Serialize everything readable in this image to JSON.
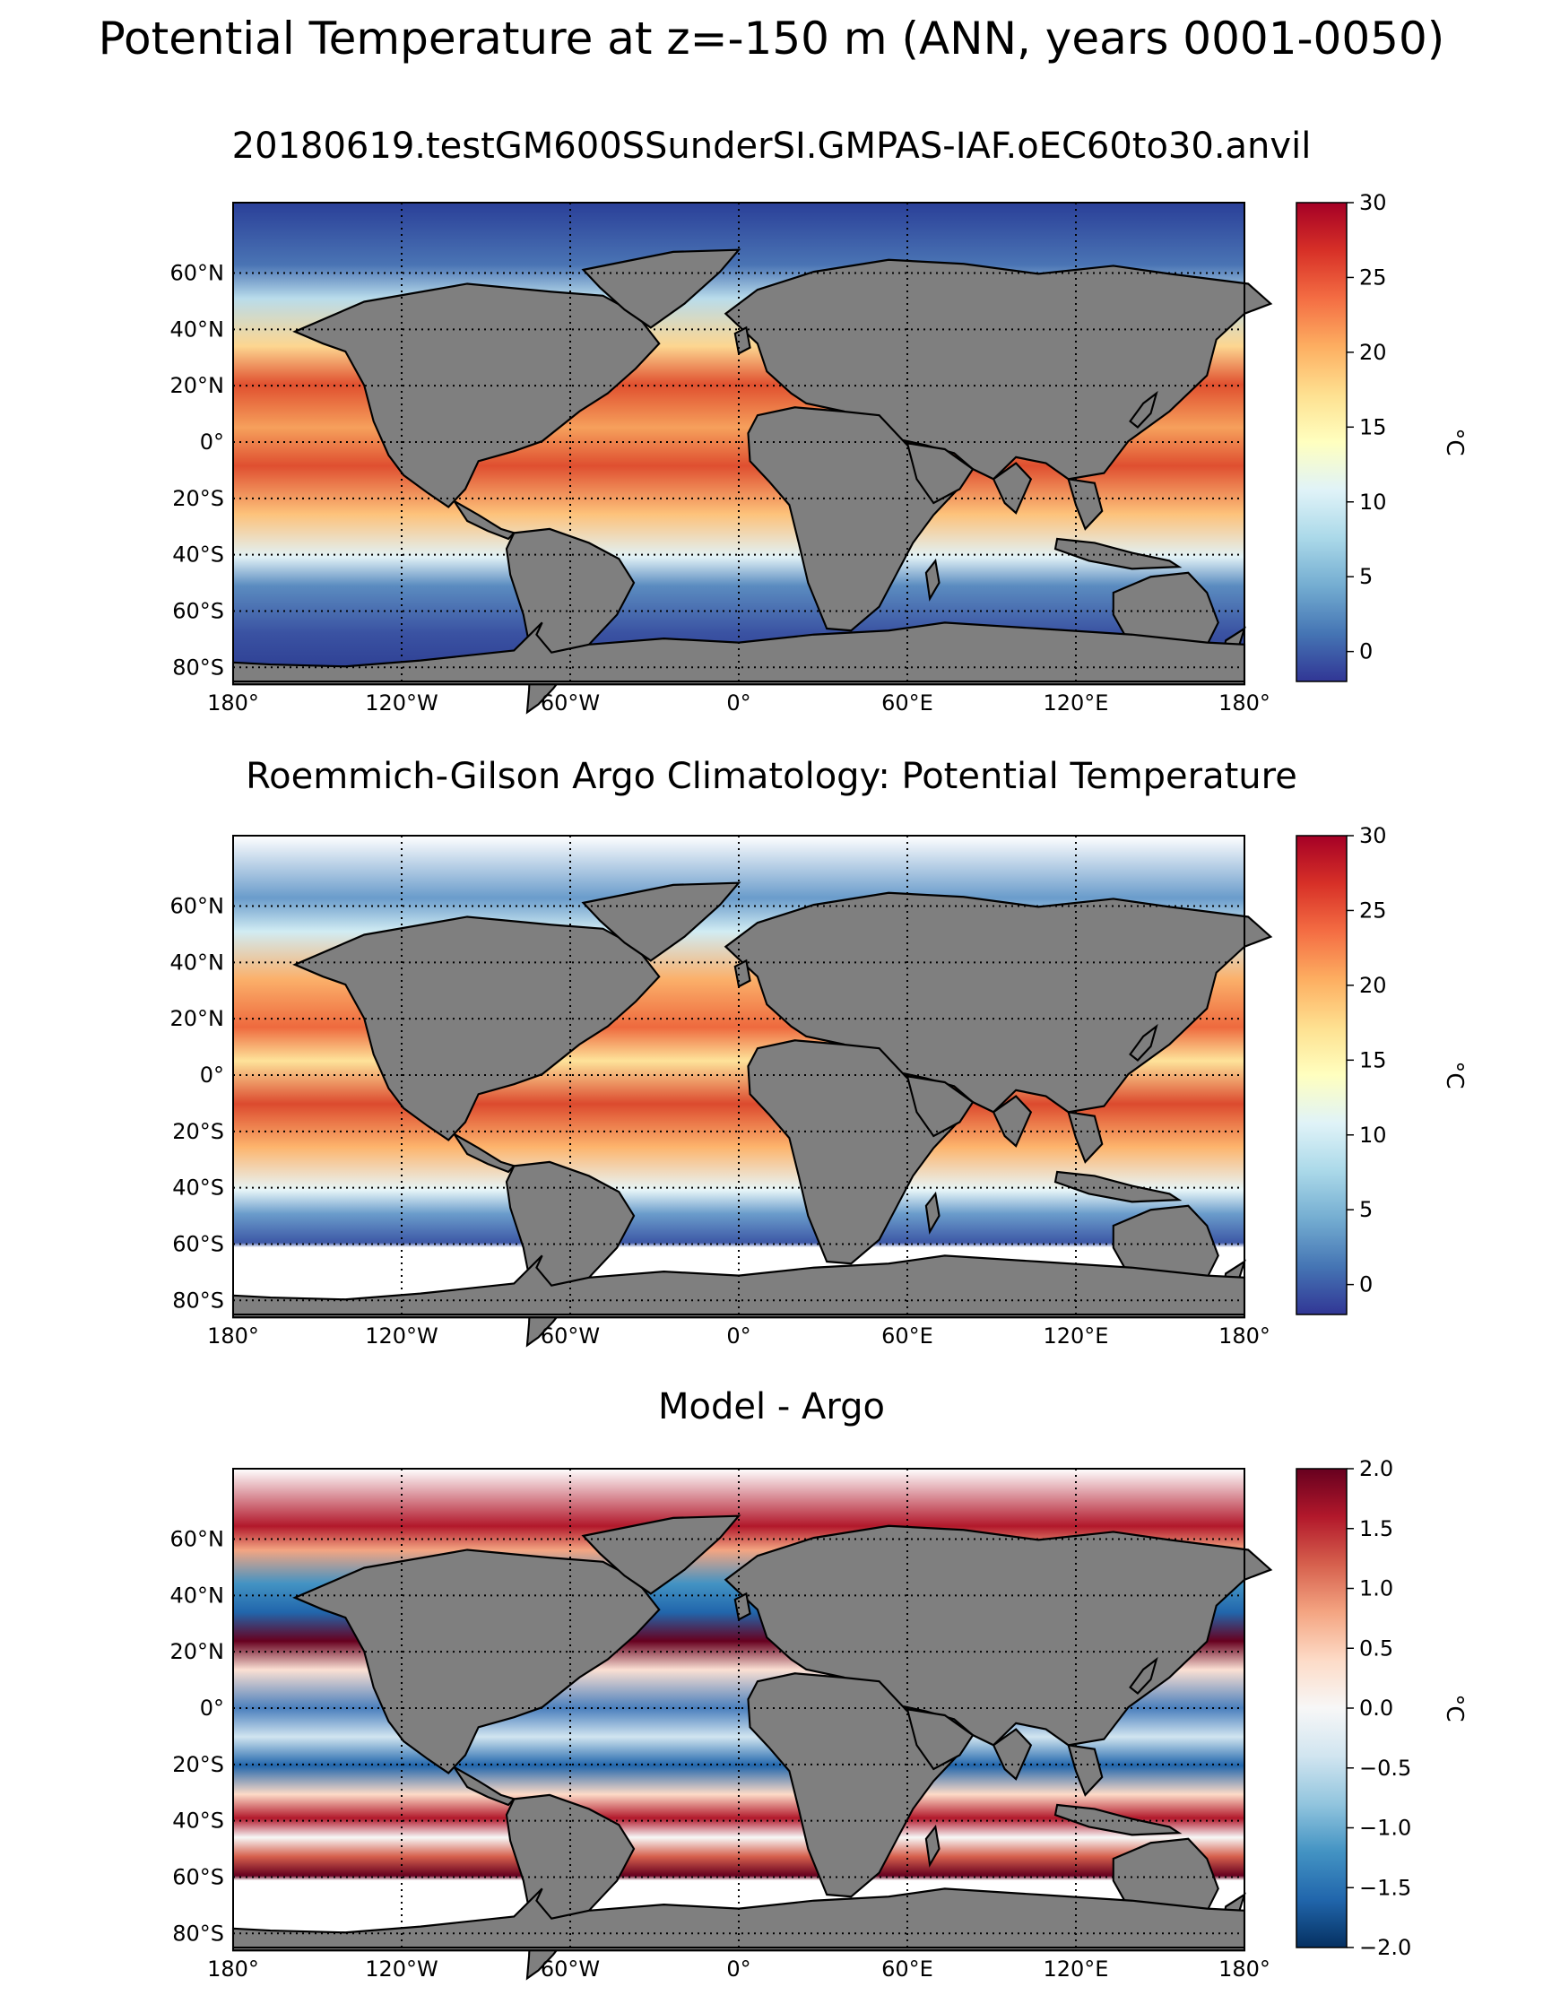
{
  "figure": {
    "title": "Potential Temperature at z=-150 m (ANN, years 0001-0050)"
  },
  "axes": {
    "lon_labels": [
      "180°",
      "120°W",
      "60°W",
      "0°",
      "60°E",
      "120°E",
      "180°"
    ],
    "lon_values": [
      -180,
      -120,
      -60,
      0,
      60,
      120,
      180
    ],
    "lat_labels": [
      "60°N",
      "40°N",
      "20°N",
      "0°",
      "20°S",
      "40°S",
      "60°S",
      "80°S"
    ],
    "lat_values": [
      60,
      40,
      20,
      0,
      -20,
      -40,
      -60,
      -80
    ],
    "lat_range": [
      -85,
      85
    ],
    "lon_range": [
      -180,
      180
    ],
    "gridlines": "dotted",
    "land_color": "#7f7f7f",
    "missing_color": "#ffffff"
  },
  "panels": [
    {
      "title": "20180619.testGM600SSunderSI.GMPAS-IAF.oEC60to30.anvil",
      "colormap": "RdYlBu_r",
      "colorbar": {
        "ticks": [
          "30",
          "25",
          "20",
          "15",
          "10",
          "5",
          "0"
        ],
        "tick_values": [
          30,
          25,
          20,
          15,
          10,
          5,
          0
        ],
        "range": [
          -2,
          30
        ],
        "unit": "°C"
      }
    },
    {
      "title": "Roemmich-Gilson Argo Climatology: Potential Temperature",
      "colormap": "RdYlBu_r",
      "colorbar": {
        "ticks": [
          "30",
          "25",
          "20",
          "15",
          "10",
          "5",
          "0"
        ],
        "tick_values": [
          30,
          25,
          20,
          15,
          10,
          5,
          0
        ],
        "range": [
          -2,
          30
        ],
        "unit": "°C"
      }
    },
    {
      "title": "Model - Argo",
      "colormap": "RdBu_r",
      "colorbar": {
        "ticks": [
          "2.0",
          "1.5",
          "1.0",
          "0.5",
          "0.0",
          "−0.5",
          "−1.0",
          "−1.5",
          "−2.0"
        ],
        "tick_values": [
          2,
          1.5,
          1,
          0.5,
          0,
          -0.5,
          -1,
          -1.5,
          -2
        ],
        "range": [
          -2,
          2
        ],
        "unit": "°C"
      }
    }
  ],
  "colors": {
    "warm_max": "#a50026",
    "cool_min": "#313695",
    "diff_max": "#67001f",
    "diff_min": "#053061"
  }
}
